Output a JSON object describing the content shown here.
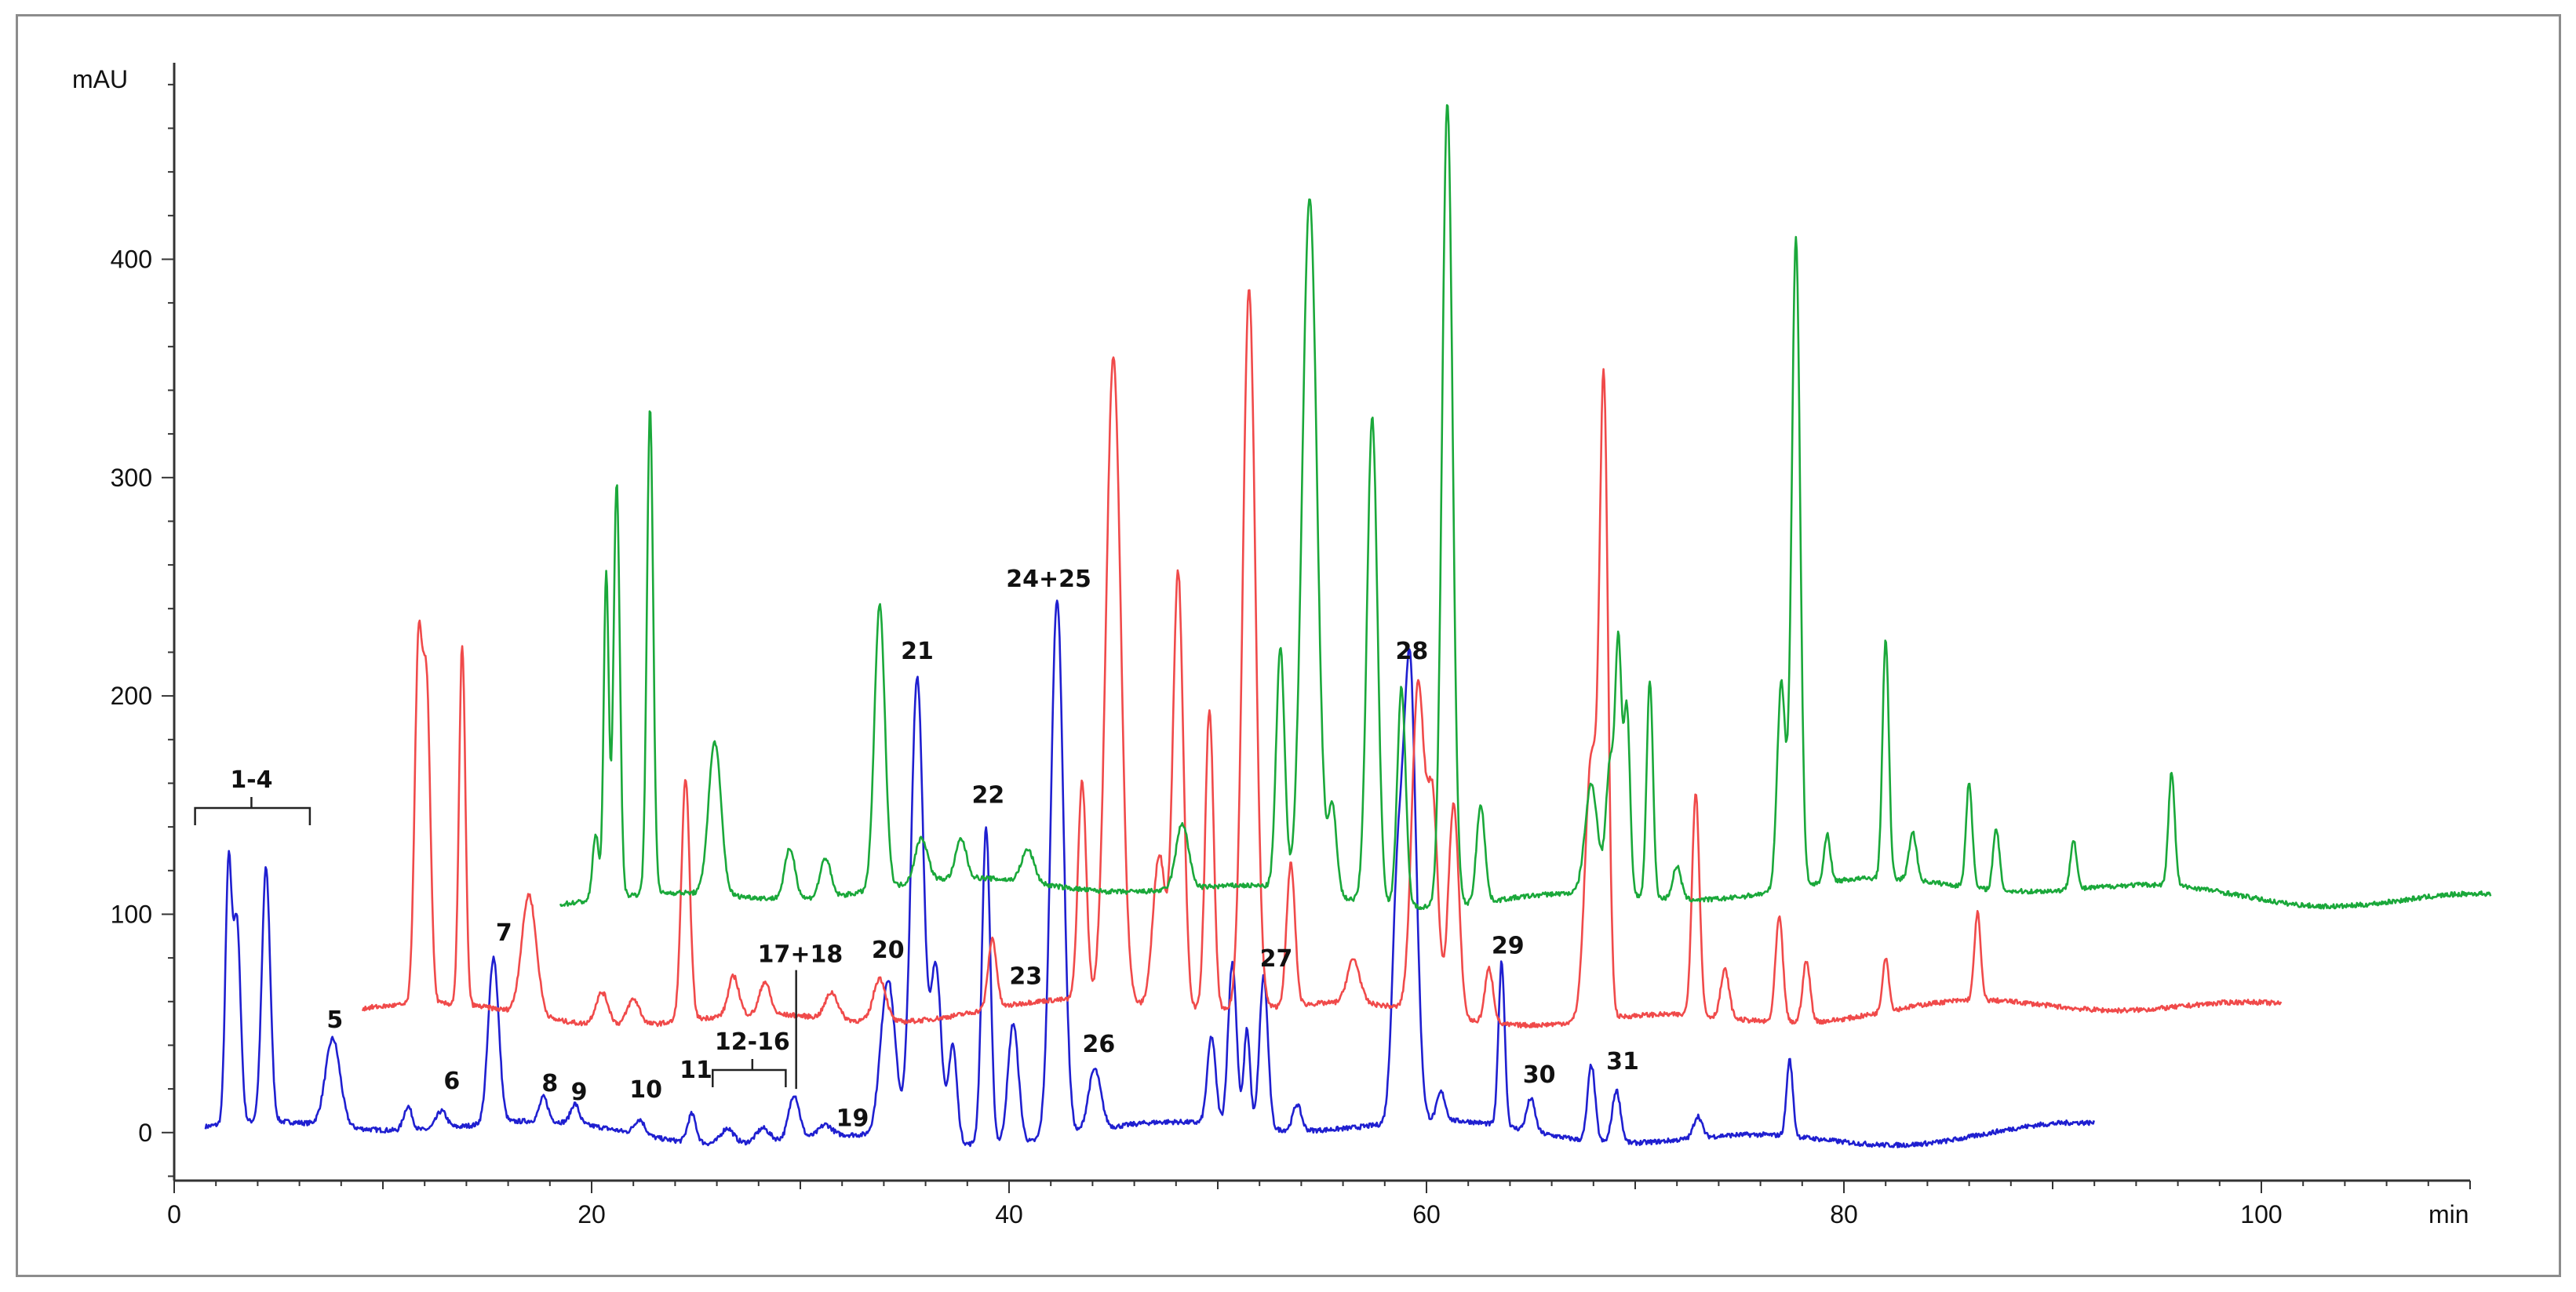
{
  "chart_data": {
    "type": "line",
    "title": "",
    "xlabel": "min",
    "ylabel": "mAU",
    "xlim": [
      0,
      110
    ],
    "ylim": [
      -22,
      490
    ],
    "x_ticks": [
      0,
      20,
      40,
      60,
      80,
      100
    ],
    "y_ticks": [
      0,
      100,
      200,
      300,
      400
    ],
    "grid": false,
    "legend": "none",
    "series": [
      {
        "color": "#1f1fd0",
        "baseline": 0,
        "x_range": [
          1.5,
          92
        ],
        "peaks": [
          [
            2.6,
            115,
            0.15
          ],
          [
            3.0,
            92,
            0.18
          ],
          [
            4.4,
            116,
            0.2
          ],
          [
            7.6,
            40,
            0.35
          ],
          [
            11.2,
            11,
            0.2
          ],
          [
            12.8,
            8,
            0.25
          ],
          [
            15.3,
            76,
            0.25
          ],
          [
            17.7,
            11,
            0.2
          ],
          [
            19.2,
            9,
            0.2
          ],
          [
            22.3,
            7,
            0.25
          ],
          [
            24.8,
            13,
            0.2
          ],
          [
            26.5,
            7,
            0.3
          ],
          [
            28.2,
            6,
            0.3
          ],
          [
            29.7,
            20,
            0.25
          ],
          [
            31.2,
            5,
            0.3
          ],
          [
            34.2,
            72,
            0.35
          ],
          [
            35.6,
            212,
            0.3
          ],
          [
            36.5,
            80,
            0.25
          ],
          [
            37.3,
            45,
            0.2
          ],
          [
            38.9,
            145,
            0.2
          ],
          [
            40.2,
            55,
            0.25
          ],
          [
            42.3,
            247,
            0.3
          ],
          [
            44.1,
            28,
            0.3
          ],
          [
            49.7,
            40,
            0.2
          ],
          [
            50.7,
            75,
            0.2
          ],
          [
            51.4,
            45,
            0.15
          ],
          [
            52.2,
            70,
            0.2
          ],
          [
            53.8,
            12,
            0.2
          ],
          [
            58.6,
            100,
            0.25
          ],
          [
            59.2,
            210,
            0.3
          ],
          [
            60.7,
            13,
            0.2
          ],
          [
            63.6,
            75,
            0.15
          ],
          [
            65.0,
            15,
            0.2
          ],
          [
            67.9,
            35,
            0.18
          ],
          [
            69.1,
            24,
            0.2
          ],
          [
            73.0,
            10,
            0.2
          ],
          [
            77.4,
            35,
            0.15
          ]
        ]
      },
      {
        "color": "#f04a4a",
        "baseline": 55,
        "x_range": [
          9,
          101
        ],
        "peaks": [
          [
            11.7,
            160,
            0.18
          ],
          [
            12.1,
            140,
            0.18
          ],
          [
            13.8,
            165,
            0.15
          ],
          [
            17.0,
            55,
            0.35
          ],
          [
            20.5,
            15,
            0.3
          ],
          [
            22.0,
            12,
            0.3
          ],
          [
            24.5,
            110,
            0.2
          ],
          [
            26.8,
            18,
            0.25
          ],
          [
            28.3,
            15,
            0.25
          ],
          [
            31.5,
            12,
            0.3
          ],
          [
            33.8,
            20,
            0.3
          ],
          [
            39.2,
            32,
            0.2
          ],
          [
            43.5,
            100,
            0.2
          ],
          [
            45.0,
            295,
            0.35
          ],
          [
            47.2,
            70,
            0.3
          ],
          [
            48.1,
            200,
            0.25
          ],
          [
            49.6,
            138,
            0.2
          ],
          [
            51.5,
            330,
            0.3
          ],
          [
            53.5,
            65,
            0.2
          ],
          [
            56.5,
            20,
            0.3
          ],
          [
            59.6,
            150,
            0.3
          ],
          [
            60.3,
            95,
            0.25
          ],
          [
            61.3,
            98,
            0.25
          ],
          [
            63.0,
            25,
            0.2
          ],
          [
            67.9,
            120,
            0.3
          ],
          [
            68.5,
            280,
            0.2
          ],
          [
            72.9,
            102,
            0.18
          ],
          [
            74.3,
            22,
            0.2
          ],
          [
            76.9,
            48,
            0.18
          ],
          [
            78.2,
            28,
            0.18
          ],
          [
            82.0,
            25,
            0.15
          ],
          [
            86.4,
            40,
            0.15
          ]
        ]
      },
      {
        "color": "#1aa83a",
        "baseline": 110,
        "x_range": [
          18.5,
          111
        ],
        "peaks": [
          [
            20.2,
            30,
            0.15
          ],
          [
            20.7,
            150,
            0.12
          ],
          [
            21.2,
            190,
            0.15
          ],
          [
            22.8,
            222,
            0.15
          ],
          [
            25.9,
            70,
            0.3
          ],
          [
            29.5,
            23,
            0.25
          ],
          [
            31.2,
            18,
            0.25
          ],
          [
            33.8,
            130,
            0.25
          ],
          [
            35.8,
            20,
            0.3
          ],
          [
            37.7,
            18,
            0.25
          ],
          [
            40.9,
            15,
            0.3
          ],
          [
            48.3,
            30,
            0.3
          ],
          [
            53.0,
            110,
            0.2
          ],
          [
            54.4,
            318,
            0.35
          ],
          [
            55.5,
            40,
            0.2
          ],
          [
            57.4,
            222,
            0.25
          ],
          [
            58.8,
            100,
            0.2
          ],
          [
            61.0,
            368,
            0.25
          ],
          [
            62.6,
            45,
            0.2
          ],
          [
            67.9,
            50,
            0.3
          ],
          [
            68.8,
            60,
            0.2
          ],
          [
            69.2,
            110,
            0.15
          ],
          [
            69.6,
            85,
            0.15
          ],
          [
            70.7,
            100,
            0.15
          ],
          [
            72.0,
            15,
            0.2
          ],
          [
            77.0,
            95,
            0.2
          ],
          [
            77.7,
            298,
            0.2
          ],
          [
            79.2,
            22,
            0.15
          ],
          [
            82.0,
            110,
            0.15
          ],
          [
            83.3,
            22,
            0.18
          ],
          [
            86.0,
            48,
            0.15
          ],
          [
            87.3,
            28,
            0.15
          ],
          [
            91.0,
            23,
            0.15
          ],
          [
            95.7,
            52,
            0.15
          ]
        ]
      }
    ],
    "annotations": [
      {
        "text": "1-4",
        "x": 3.7,
        "y": 158,
        "bracket": [
          1.0,
          6.5
        ]
      },
      {
        "text": "5",
        "x": 7.7,
        "y": 48
      },
      {
        "text": "6",
        "x": 13.3,
        "y": 20
      },
      {
        "text": "7",
        "x": 15.8,
        "y": 88
      },
      {
        "text": "8",
        "x": 18.0,
        "y": 19
      },
      {
        "text": "9",
        "x": 19.4,
        "y": 15
      },
      {
        "text": "10",
        "x": 22.6,
        "y": 16
      },
      {
        "text": "11",
        "x": 25.0,
        "y": 25
      },
      {
        "text": "12-16",
        "x": 27.7,
        "y": 38,
        "bracket": [
          25.8,
          29.3
        ]
      },
      {
        "text": "17+18",
        "x": 30.0,
        "y": 78,
        "leader": 29.8
      },
      {
        "text": "19",
        "x": 32.5,
        "y": 3
      },
      {
        "text": "20",
        "x": 34.2,
        "y": 80
      },
      {
        "text": "21",
        "x": 35.6,
        "y": 217
      },
      {
        "text": "22",
        "x": 39.0,
        "y": 151
      },
      {
        "text": "23",
        "x": 40.8,
        "y": 68
      },
      {
        "text": "24+25",
        "x": 41.9,
        "y": 250
      },
      {
        "text": "26",
        "x": 44.3,
        "y": 37
      },
      {
        "text": "27",
        "x": 52.8,
        "y": 76
      },
      {
        "text": "28",
        "x": 59.3,
        "y": 217
      },
      {
        "text": "29",
        "x": 63.9,
        "y": 82
      },
      {
        "text": "30",
        "x": 65.4,
        "y": 23
      },
      {
        "text": "31",
        "x": 69.4,
        "y": 29
      }
    ]
  }
}
